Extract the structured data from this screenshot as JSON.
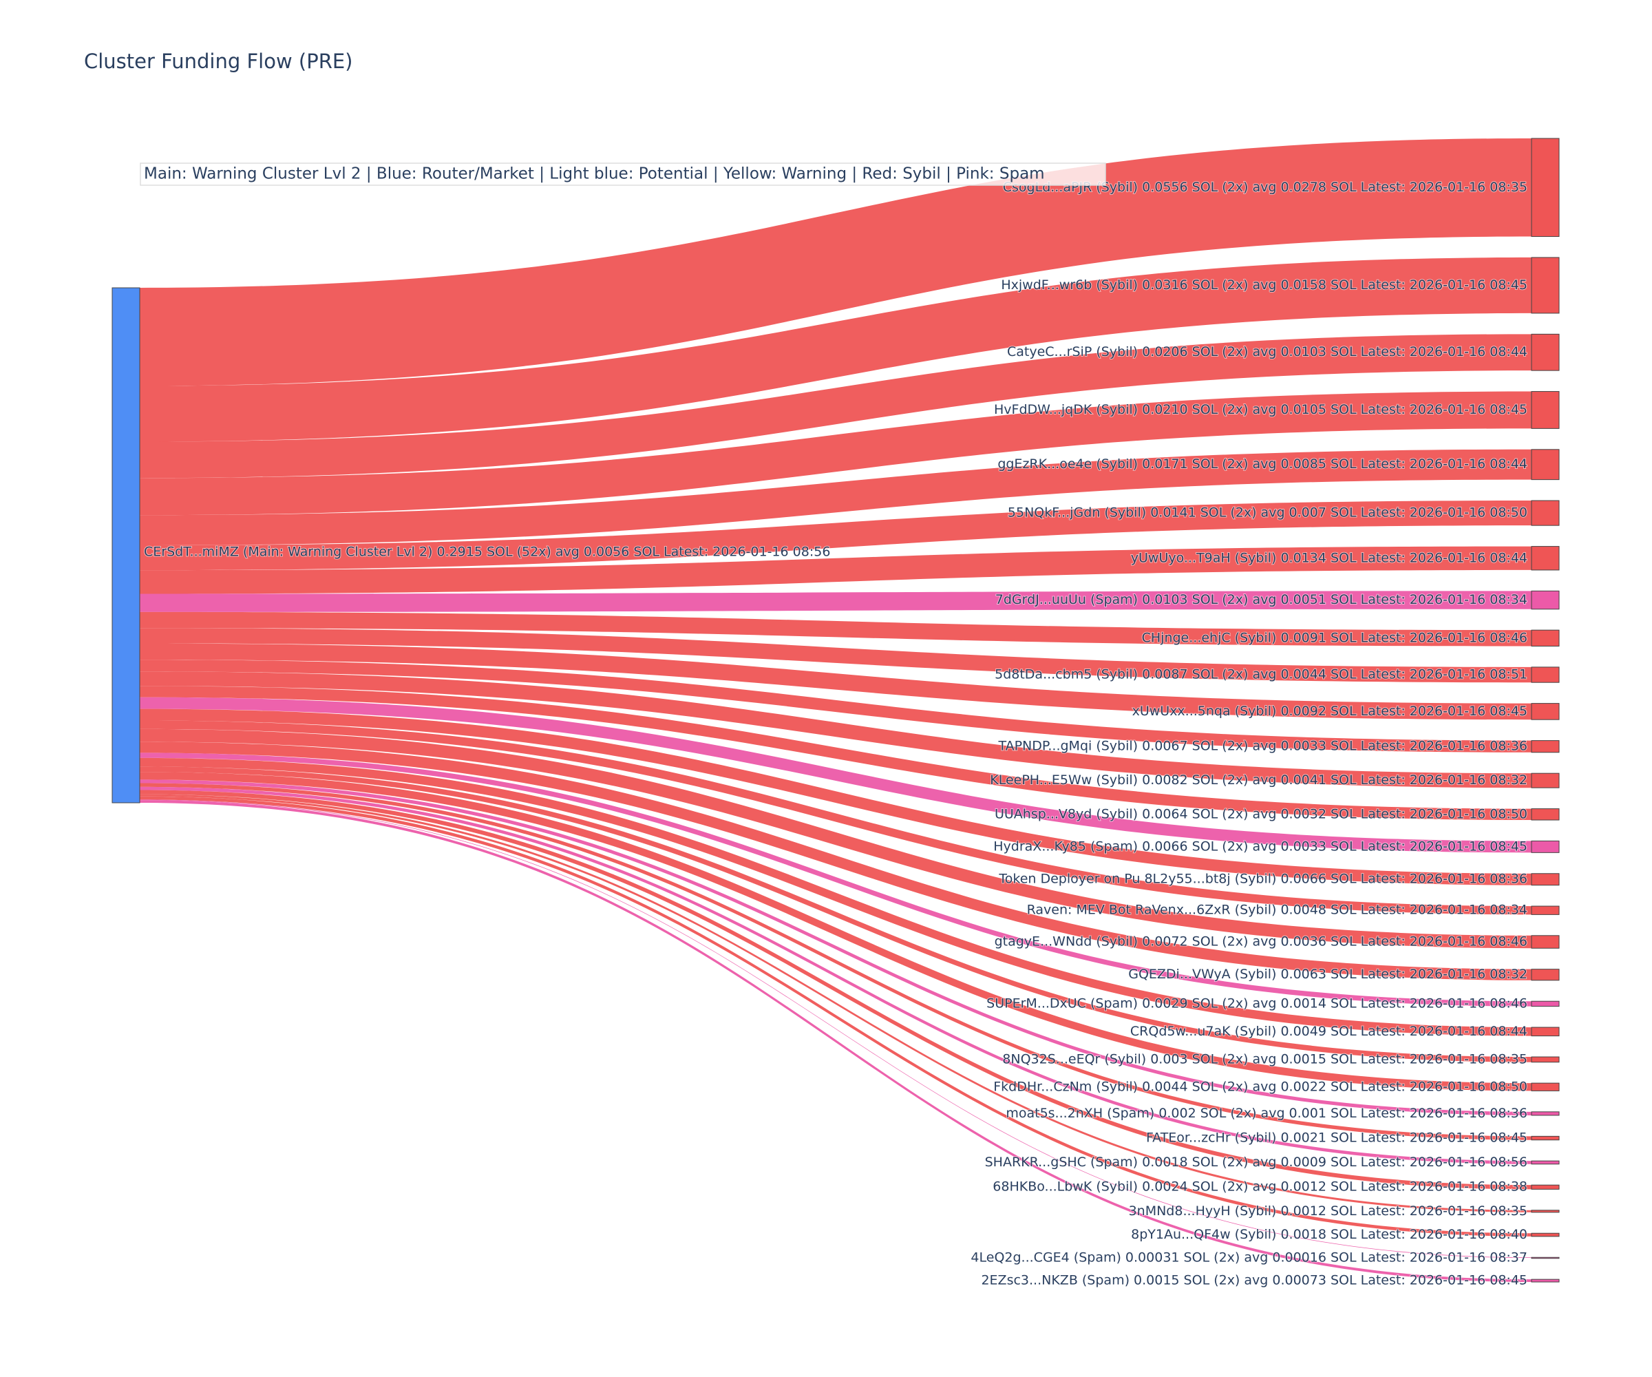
{
  "chart_data": {
    "type": "sankey",
    "title": "Cluster Funding Flow (PRE)",
    "annotation": "Main: Warning Cluster Lvl 2  |  Blue: Router/Market | Light blue: Potential | Yellow: Warning | Red: Sybil | Pink: Spam",
    "source": {
      "label": "CErSdT...miMZ (Main: Warning Cluster Lvl 2) 0.2915 SOL (52x) avg 0.0056 SOL Latest: 2026-01-16 08:56",
      "color": "#4f8ef5"
    },
    "targets": [
      {
        "label": "CsogLd...aPJR (Sybil) 0.0556 SOL (2x) avg 0.0278 SOL Latest: 2026-01-16 08:35",
        "value": 0.0556,
        "color": "#ef5555"
      },
      {
        "label": "HxjwdF...wr6b (Sybil) 0.0316 SOL (2x) avg 0.0158 SOL Latest: 2026-01-16 08:45",
        "value": 0.0316,
        "color": "#ef5555"
      },
      {
        "label": "CatyeC...rSiP (Sybil) 0.0206 SOL (2x) avg 0.0103 SOL Latest: 2026-01-16 08:44",
        "value": 0.0206,
        "color": "#ef5555"
      },
      {
        "label": "HvFdDW...jqDK (Sybil) 0.0210 SOL (2x) avg 0.0105 SOL Latest: 2026-01-16 08:45",
        "value": 0.021,
        "color": "#ef5555"
      },
      {
        "label": "ggEzRK...oe4e (Sybil) 0.0171 SOL (2x) avg 0.0085 SOL Latest: 2026-01-16 08:44",
        "value": 0.0171,
        "color": "#ef5555"
      },
      {
        "label": "55NQkF...jGdn (Sybil) 0.0141 SOL (2x) avg 0.007 SOL Latest: 2026-01-16 08:50",
        "value": 0.0141,
        "color": "#ef5555"
      },
      {
        "label": "yUwUyo...T9aH (Sybil) 0.0134 SOL Latest: 2026-01-16 08:44",
        "value": 0.0134,
        "color": "#ef5555"
      },
      {
        "label": "7dGrdJ...uuUu (Spam) 0.0103 SOL (2x) avg 0.0051 SOL Latest: 2026-01-16 08:34",
        "value": 0.0103,
        "color": "#ec5aa8"
      },
      {
        "label": "CHjnge...ehjC (Sybil) 0.0091 SOL Latest: 2026-01-16 08:46",
        "value": 0.0091,
        "color": "#ef5555"
      },
      {
        "label": "5d8tDa...cbm5 (Sybil) 0.0087 SOL (2x) avg 0.0044 SOL Latest: 2026-01-16 08:51",
        "value": 0.0087,
        "color": "#ef5555"
      },
      {
        "label": "xUwUxx...5nqa (Sybil) 0.0092 SOL Latest: 2026-01-16 08:45",
        "value": 0.0092,
        "color": "#ef5555"
      },
      {
        "label": "TAPNDP...gMqi (Sybil) 0.0067 SOL (2x) avg 0.0033 SOL Latest: 2026-01-16 08:36",
        "value": 0.0067,
        "color": "#ef5555"
      },
      {
        "label": "KLeePH...E5Ww (Sybil) 0.0082 SOL (2x) avg 0.0041 SOL Latest: 2026-01-16 08:32",
        "value": 0.0082,
        "color": "#ef5555"
      },
      {
        "label": "UUAhsp...V8yd (Sybil) 0.0064 SOL (2x) avg 0.0032 SOL Latest: 2026-01-16 08:50",
        "value": 0.0064,
        "color": "#ef5555"
      },
      {
        "label": "HydraX...Ky85 (Spam) 0.0066 SOL (2x) avg 0.0033 SOL Latest: 2026-01-16 08:45",
        "value": 0.0066,
        "color": "#ec5aa8"
      },
      {
        "label": "Token Deployer on Pu 8L2y55...bt8j (Sybil) 0.0066 SOL Latest: 2026-01-16 08:36",
        "value": 0.0066,
        "color": "#ef5555"
      },
      {
        "label": "Raven: MEV Bot RaVenx...6ZxR (Sybil) 0.0048 SOL Latest: 2026-01-16 08:34",
        "value": 0.0048,
        "color": "#ef5555"
      },
      {
        "label": "gtagyE...WNdd (Sybil) 0.0072 SOL (2x) avg 0.0036 SOL Latest: 2026-01-16 08:46",
        "value": 0.0072,
        "color": "#ef5555"
      },
      {
        "label": "GQEZDi...VWyA (Sybil) 0.0063 SOL Latest: 2026-01-16 08:32",
        "value": 0.0063,
        "color": "#ef5555"
      },
      {
        "label": "SUPErM...DxUC (Spam) 0.0029 SOL (2x) avg 0.0014 SOL Latest: 2026-01-16 08:46",
        "value": 0.0029,
        "color": "#ec5aa8"
      },
      {
        "label": "CRQd5w...u7aK (Sybil) 0.0049 SOL Latest: 2026-01-16 08:44",
        "value": 0.0049,
        "color": "#ef5555"
      },
      {
        "label": "8NQ32S...eEQr (Sybil) 0.003 SOL (2x) avg 0.0015 SOL Latest: 2026-01-16 08:35",
        "value": 0.003,
        "color": "#ef5555"
      },
      {
        "label": "FkdDHr...CzNm (Sybil) 0.0044 SOL (2x) avg 0.0022 SOL Latest: 2026-01-16 08:50",
        "value": 0.0044,
        "color": "#ef5555"
      },
      {
        "label": "moat5s...2nXH (Spam) 0.002 SOL (2x) avg 0.001 SOL Latest: 2026-01-16 08:36",
        "value": 0.002,
        "color": "#ec5aa8"
      },
      {
        "label": "FATEor...zcHr (Sybil) 0.0021 SOL Latest: 2026-01-16 08:45",
        "value": 0.0021,
        "color": "#ef5555"
      },
      {
        "label": "SHARKR...gSHC (Spam) 0.0018 SOL (2x) avg 0.0009 SOL Latest: 2026-01-16 08:56",
        "value": 0.0018,
        "color": "#ec5aa8"
      },
      {
        "label": "68HKBo...LbwK (Sybil) 0.0024 SOL (2x) avg 0.0012 SOL Latest: 2026-01-16 08:38",
        "value": 0.0024,
        "color": "#ef5555"
      },
      {
        "label": "3nMNd8...HyyH (Sybil) 0.0012 SOL Latest: 2026-01-16 08:35",
        "value": 0.0012,
        "color": "#ef5555"
      },
      {
        "label": "8pY1Au...QF4w (Sybil) 0.0018 SOL Latest: 2026-01-16 08:40",
        "value": 0.0018,
        "color": "#ef5555"
      },
      {
        "label": "4LeQ2g...CGE4 (Spam) 0.00031 SOL (2x) avg 0.00016 SOL Latest: 2026-01-16 08:37",
        "value": 0.00031,
        "color": "#ec5aa8"
      },
      {
        "label": "2EZsc3...NKZB (Spam) 0.0015 SOL (2x) avg 0.00073 SOL Latest: 2026-01-16 08:45",
        "value": 0.0015,
        "color": "#ec5aa8"
      }
    ]
  }
}
